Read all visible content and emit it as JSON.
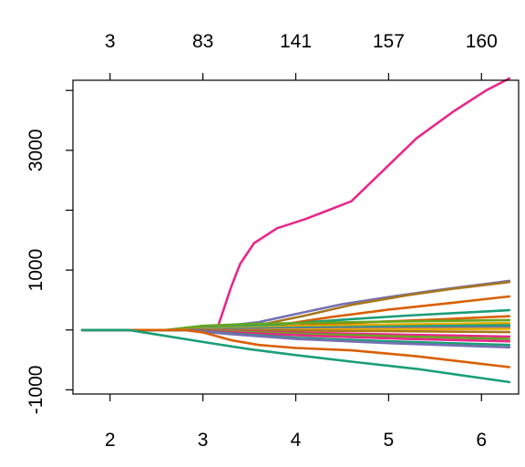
{
  "chart_data": {
    "type": "line",
    "title": "",
    "xlabel": "",
    "ylabel": "",
    "xlim": [
      1.6,
      6.4
    ],
    "ylim": [
      -1070,
      4170
    ],
    "grid": false,
    "legend": "none",
    "x_ticks": [
      {
        "value": 2,
        "label": "2"
      },
      {
        "value": 3,
        "label": "3"
      },
      {
        "value": 4,
        "label": "4"
      },
      {
        "value": 5,
        "label": "5"
      },
      {
        "value": 6,
        "label": "6"
      }
    ],
    "top_ticks": [
      {
        "value": 2,
        "label": "3"
      },
      {
        "value": 3,
        "label": "83"
      },
      {
        "value": 4,
        "label": "141"
      },
      {
        "value": 5,
        "label": "157"
      },
      {
        "value": 6,
        "label": "160"
      }
    ],
    "y_ticks": [
      {
        "value": -1000,
        "label": "-1000"
      },
      {
        "value": 0,
        "label": ""
      },
      {
        "value": 1000,
        "label": "1000"
      },
      {
        "value": 2000,
        "label": ""
      },
      {
        "value": 3000,
        "label": "3000"
      },
      {
        "value": 4000,
        "label": ""
      }
    ],
    "series": [
      {
        "color": "#e7298a",
        "points": [
          [
            1.7,
            0
          ],
          [
            3.15,
            0
          ],
          [
            3.3,
            700
          ],
          [
            3.4,
            1100
          ],
          [
            3.55,
            1450
          ],
          [
            3.8,
            1700
          ],
          [
            4.1,
            1850
          ],
          [
            4.35,
            2000
          ],
          [
            4.6,
            2150
          ],
          [
            5.0,
            2750
          ],
          [
            5.3,
            3200
          ],
          [
            5.7,
            3650
          ],
          [
            6.05,
            4000
          ],
          [
            6.3,
            4200
          ]
        ]
      },
      {
        "color": "#7570b3",
        "points": [
          [
            1.7,
            0
          ],
          [
            2.7,
            0
          ],
          [
            3.2,
            60
          ],
          [
            3.6,
            130
          ],
          [
            4.1,
            300
          ],
          [
            4.5,
            430
          ],
          [
            5.0,
            550
          ],
          [
            5.5,
            660
          ],
          [
            6.0,
            760
          ],
          [
            6.3,
            820
          ]
        ]
      },
      {
        "color": "#a6761d",
        "points": [
          [
            1.7,
            0
          ],
          [
            2.7,
            0
          ],
          [
            3.2,
            20
          ],
          [
            3.6,
            80
          ],
          [
            4.1,
            240
          ],
          [
            4.6,
            420
          ],
          [
            5.2,
            580
          ],
          [
            5.7,
            690
          ],
          [
            6.3,
            800
          ]
        ]
      },
      {
        "color": "#d95f02",
        "points": [
          [
            1.7,
            0
          ],
          [
            2.8,
            0
          ],
          [
            3.3,
            20
          ],
          [
            3.8,
            80
          ],
          [
            4.4,
            220
          ],
          [
            5.0,
            340
          ],
          [
            5.6,
            440
          ],
          [
            6.3,
            560
          ]
        ]
      },
      {
        "color": "#1b9e77",
        "points": [
          [
            1.7,
            0
          ],
          [
            2.7,
            0
          ],
          [
            3.2,
            40
          ],
          [
            3.8,
            90
          ],
          [
            4.5,
            170
          ],
          [
            5.2,
            240
          ],
          [
            6.3,
            330
          ]
        ]
      },
      {
        "color": "#d95f02",
        "points": [
          [
            1.7,
            0
          ],
          [
            2.8,
            0
          ],
          [
            3.3,
            15
          ],
          [
            4.0,
            70
          ],
          [
            4.8,
            130
          ],
          [
            5.6,
            180
          ],
          [
            6.3,
            230
          ]
        ]
      },
      {
        "color": "#66a61e",
        "points": [
          [
            1.7,
            0
          ],
          [
            2.6,
            0
          ],
          [
            3.0,
            70
          ],
          [
            3.5,
            100
          ],
          [
            4.2,
            120
          ],
          [
            5.0,
            140
          ],
          [
            6.3,
            165
          ]
        ]
      },
      {
        "color": "#e6ab02",
        "points": [
          [
            1.7,
            0
          ],
          [
            2.7,
            0
          ],
          [
            3.2,
            30
          ],
          [
            4.0,
            60
          ],
          [
            5.0,
            90
          ],
          [
            6.3,
            115
          ]
        ]
      },
      {
        "color": "#1b9e77",
        "points": [
          [
            1.7,
            0
          ],
          [
            2.8,
            0
          ],
          [
            3.3,
            20
          ],
          [
            4.2,
            40
          ],
          [
            5.2,
            60
          ],
          [
            6.3,
            80
          ]
        ]
      },
      {
        "color": "#7570b3",
        "points": [
          [
            1.7,
            0
          ],
          [
            2.8,
            0
          ],
          [
            3.3,
            10
          ],
          [
            4.2,
            25
          ],
          [
            5.2,
            35
          ],
          [
            6.3,
            45
          ]
        ]
      },
      {
        "color": "#e6ab02",
        "points": [
          [
            1.7,
            0
          ],
          [
            2.8,
            0
          ],
          [
            3.5,
            0
          ],
          [
            4.5,
            10
          ],
          [
            5.5,
            15
          ],
          [
            6.3,
            20
          ]
        ]
      },
      {
        "color": "#a6761d",
        "points": [
          [
            1.7,
            0
          ],
          [
            2.8,
            0
          ],
          [
            3.5,
            -5
          ],
          [
            4.5,
            -15
          ],
          [
            5.5,
            -25
          ],
          [
            6.3,
            -35
          ]
        ]
      },
      {
        "color": "#e7298a",
        "points": [
          [
            1.7,
            0
          ],
          [
            2.8,
            0
          ],
          [
            3.3,
            -20
          ],
          [
            4.2,
            -50
          ],
          [
            5.2,
            -80
          ],
          [
            6.3,
            -110
          ]
        ]
      },
      {
        "color": "#66a61e",
        "points": [
          [
            1.7,
            0
          ],
          [
            2.8,
            0
          ],
          [
            3.3,
            -25
          ],
          [
            4.2,
            -70
          ],
          [
            5.2,
            -110
          ],
          [
            6.3,
            -150
          ]
        ]
      },
      {
        "color": "#e7298a",
        "points": [
          [
            1.7,
            0
          ],
          [
            2.8,
            0
          ],
          [
            3.3,
            -40
          ],
          [
            4.2,
            -100
          ],
          [
            5.2,
            -150
          ],
          [
            6.3,
            -190
          ]
        ]
      },
      {
        "color": "#1b9e77",
        "points": [
          [
            1.7,
            0
          ],
          [
            2.8,
            0
          ],
          [
            3.3,
            -60
          ],
          [
            4.0,
            -130
          ],
          [
            5.0,
            -190
          ],
          [
            6.3,
            -250
          ]
        ]
      },
      {
        "color": "#7570b3",
        "points": [
          [
            1.7,
            0
          ],
          [
            2.8,
            0
          ],
          [
            3.3,
            -70
          ],
          [
            4.0,
            -150
          ],
          [
            5.0,
            -220
          ],
          [
            6.3,
            -290
          ]
        ]
      },
      {
        "color": "#d95f02",
        "points": [
          [
            1.7,
            0
          ],
          [
            2.8,
            0
          ],
          [
            3.0,
            -40
          ],
          [
            3.3,
            -170
          ],
          [
            3.6,
            -250
          ],
          [
            4.0,
            -300
          ],
          [
            4.6,
            -340
          ],
          [
            5.3,
            -440
          ],
          [
            6.3,
            -620
          ]
        ]
      },
      {
        "color": "#1b9e77",
        "points": [
          [
            1.7,
            0
          ],
          [
            2.2,
            0
          ],
          [
            2.6,
            -100
          ],
          [
            3.0,
            -200
          ],
          [
            3.5,
            -320
          ],
          [
            4.0,
            -420
          ],
          [
            4.6,
            -530
          ],
          [
            5.3,
            -650
          ],
          [
            6.3,
            -870
          ]
        ]
      }
    ]
  }
}
